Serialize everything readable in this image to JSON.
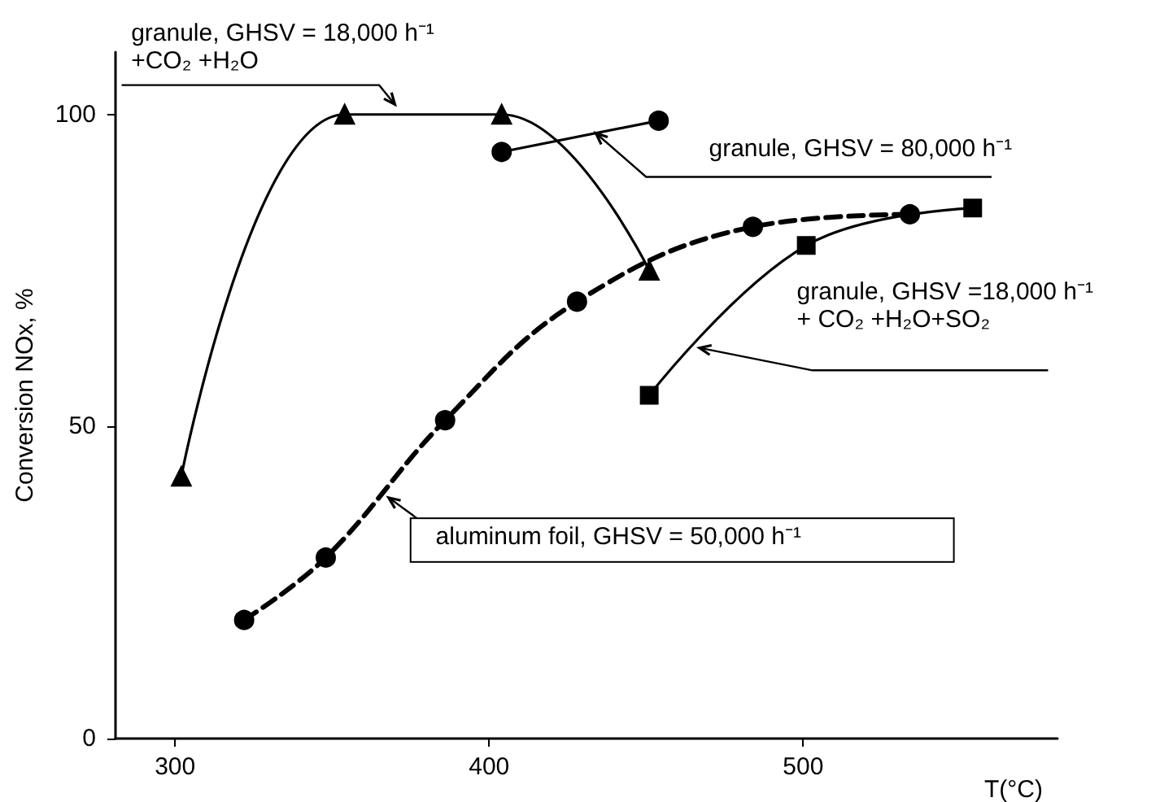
{
  "chart_data": {
    "type": "line",
    "xlabel": "T(°C)",
    "ylabel": "Conversion NOx, %",
    "xlim": [
      281,
      581
    ],
    "ylim": [
      0,
      110
    ],
    "xticks": [
      300,
      400,
      500
    ],
    "yticks": [
      0,
      50,
      100
    ],
    "grid": false,
    "series": [
      {
        "name": "granule, GHSV = 18,000 h⁻¹\n+CO₂ +H₂O",
        "color": "#000000",
        "marker": "triangle",
        "line_style": "solid",
        "x": [
          302,
          354,
          404,
          451
        ],
        "values": [
          42,
          100,
          100,
          75
        ]
      },
      {
        "name": "granule, GHSV = 80,000 h⁻¹",
        "color": "#000000",
        "marker": "circle",
        "line_style": "solid",
        "x": [
          404,
          454
        ],
        "values": [
          94,
          99
        ]
      },
      {
        "name": "aluminum foil, GHSV = 50,000 h⁻¹",
        "color": "#000000",
        "marker": "circle",
        "line_style": "dashed",
        "x": [
          322,
          348,
          386,
          428,
          484,
          534
        ],
        "values": [
          19,
          29,
          51,
          70,
          82,
          84
        ]
      },
      {
        "name": "granule, GHSV =18,000 h⁻¹\n+ CO₂ +H₂O+SO₂",
        "color": "#000000",
        "marker": "square",
        "line_style": "solid",
        "x": [
          451,
          501,
          554
        ],
        "values": [
          55,
          79,
          85
        ]
      }
    ]
  }
}
